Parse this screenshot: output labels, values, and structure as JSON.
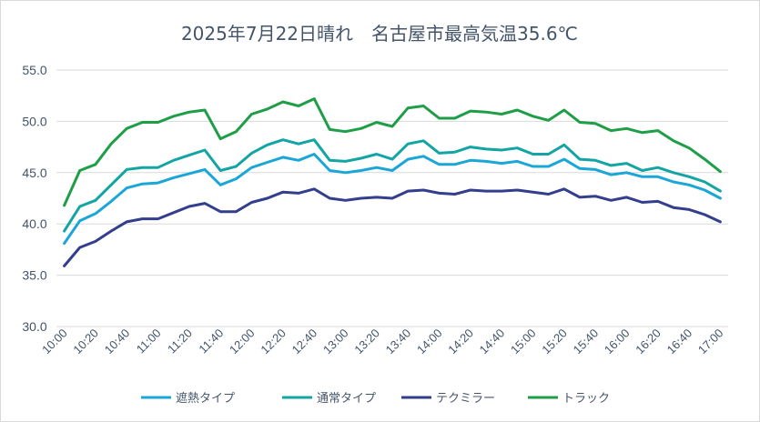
{
  "chart_data": {
    "type": "line",
    "title": "2025年7月22日晴れ　名古屋市最高気温35.6℃",
    "ylim": [
      30,
      55
    ],
    "yticks": [
      "30.0",
      "35.0",
      "40.0",
      "45.0",
      "50.0",
      "55.0"
    ],
    "grid": true,
    "legend_position": "bottom",
    "x": [
      "10:00",
      "10:10",
      "10:20",
      "10:30",
      "10:40",
      "10:50",
      "11:00",
      "11:10",
      "11:20",
      "11:30",
      "11:40",
      "11:50",
      "12:00",
      "12:10",
      "12:20",
      "12:30",
      "12:40",
      "12:50",
      "13:00",
      "13:10",
      "13:20",
      "13:30",
      "13:40",
      "13:50",
      "14:00",
      "14:10",
      "14:20",
      "14:30",
      "14:40",
      "14:50",
      "15:00",
      "15:10",
      "15:20",
      "15:30",
      "15:40",
      "15:50",
      "16:00",
      "16:10",
      "16:20",
      "16:30",
      "16:40",
      "16:50",
      "17:00"
    ],
    "xtick_labels": [
      "10:00",
      "10:20",
      "10:40",
      "11:00",
      "11:20",
      "11:40",
      "12:00",
      "12:20",
      "12:40",
      "13:00",
      "13:20",
      "13:40",
      "14:00",
      "14:20",
      "14:40",
      "15:00",
      "15:20",
      "15:40",
      "16:00",
      "16:20",
      "16:40",
      "17:00"
    ],
    "series": [
      {
        "name": "遮熱タイプ",
        "color": "#1aa7d8",
        "values": [
          38.1,
          40.3,
          41.0,
          42.2,
          43.5,
          43.9,
          44.0,
          44.5,
          44.9,
          45.3,
          43.8,
          44.4,
          45.5,
          46.0,
          46.5,
          46.2,
          46.8,
          45.2,
          45.0,
          45.2,
          45.5,
          45.2,
          46.3,
          46.6,
          45.8,
          45.8,
          46.2,
          46.1,
          45.9,
          46.1,
          45.6,
          45.6,
          46.3,
          45.4,
          45.3,
          44.8,
          45.0,
          44.6,
          44.6,
          44.1,
          43.8,
          43.3,
          42.5
        ]
      },
      {
        "name": "通常タイプ",
        "color": "#13a4a4",
        "values": [
          39.3,
          41.7,
          42.3,
          43.8,
          45.3,
          45.5,
          45.5,
          46.2,
          46.7,
          47.2,
          45.2,
          45.6,
          46.9,
          47.7,
          48.2,
          47.8,
          48.2,
          46.2,
          46.1,
          46.4,
          46.8,
          46.3,
          47.8,
          48.1,
          46.9,
          47.0,
          47.5,
          47.3,
          47.2,
          47.4,
          46.8,
          46.8,
          47.7,
          46.3,
          46.2,
          45.7,
          45.9,
          45.2,
          45.5,
          45.0,
          44.6,
          44.1,
          43.2
        ]
      },
      {
        "name": "テクミラー",
        "color": "#333e8c",
        "values": [
          35.9,
          37.7,
          38.3,
          39.3,
          40.2,
          40.5,
          40.5,
          41.1,
          41.7,
          42.0,
          41.2,
          41.2,
          42.1,
          42.5,
          43.1,
          43.0,
          43.4,
          42.5,
          42.3,
          42.5,
          42.6,
          42.5,
          43.2,
          43.3,
          43.0,
          42.9,
          43.3,
          43.2,
          43.2,
          43.3,
          43.1,
          42.9,
          43.4,
          42.6,
          42.7,
          42.3,
          42.6,
          42.1,
          42.2,
          41.6,
          41.4,
          40.9,
          40.2
        ]
      },
      {
        "name": "トラック",
        "color": "#1f9e48",
        "values": [
          41.8,
          45.2,
          45.8,
          47.8,
          49.3,
          49.9,
          49.9,
          50.5,
          50.9,
          51.1,
          48.3,
          49.0,
          50.7,
          51.2,
          51.9,
          51.5,
          52.2,
          49.2,
          49.0,
          49.3,
          49.9,
          49.5,
          51.3,
          51.5,
          50.3,
          50.3,
          51.0,
          50.9,
          50.7,
          51.1,
          50.5,
          50.1,
          51.1,
          49.9,
          49.8,
          49.1,
          49.3,
          48.9,
          49.1,
          48.1,
          47.4,
          46.3,
          45.1
        ]
      }
    ]
  }
}
